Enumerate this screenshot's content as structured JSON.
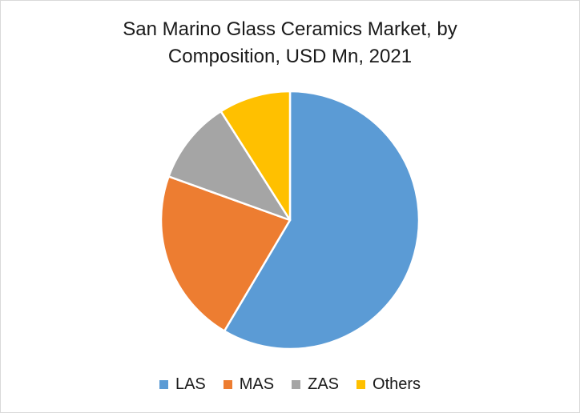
{
  "chart_data": {
    "type": "pie",
    "title_line1": "San Marino Glass Ceramics Market, by",
    "title_line2": "Composition, USD Mn, 2021",
    "series": [
      {
        "name": "LAS",
        "value": 58.5,
        "color": "#5b9bd5"
      },
      {
        "name": "MAS",
        "value": 22.0,
        "color": "#ed7d31"
      },
      {
        "name": "ZAS",
        "value": 10.5,
        "color": "#a5a5a5"
      },
      {
        "name": "Others",
        "value": 9.0,
        "color": "#ffc000"
      }
    ],
    "legend_position": "bottom"
  }
}
